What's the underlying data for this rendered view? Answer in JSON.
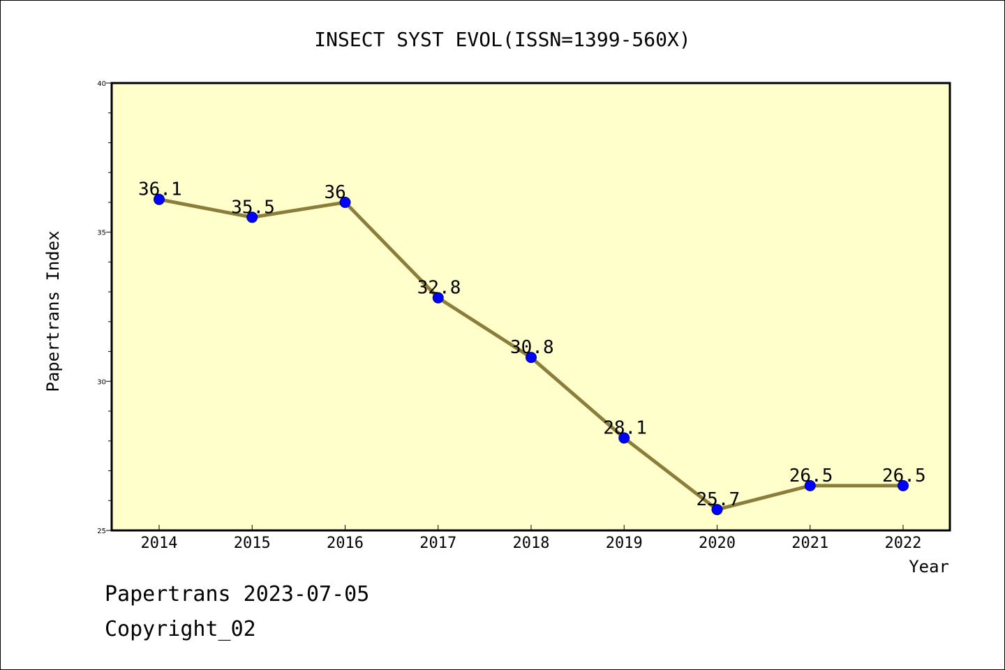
{
  "chart_data": {
    "type": "line",
    "title": "INSECT SYST EVOL(ISSN=1399-560X)",
    "xlabel": "Year",
    "ylabel": "Papertrans Index",
    "categories": [
      "2014",
      "2015",
      "2016",
      "2017",
      "2018",
      "2019",
      "2020",
      "2021",
      "2022"
    ],
    "values": [
      36.1,
      35.5,
      36,
      32.8,
      30.8,
      28.1,
      25.7,
      26.5,
      26.5
    ],
    "data_labels": [
      "36.1",
      "35.5",
      "36",
      "32.8",
      "30.8",
      "28.1",
      "25.7",
      "26.5",
      "26.5"
    ],
    "ylim": [
      25,
      40
    ],
    "yticks": [
      25,
      30,
      35,
      40
    ],
    "grid": false,
    "colors": {
      "plot_background": "#ffffcc",
      "line": "#8b7d3a",
      "marker": "#0000ff"
    }
  },
  "footer": {
    "line1": "Papertrans 2023-07-05",
    "line2": "Copyright_02"
  }
}
